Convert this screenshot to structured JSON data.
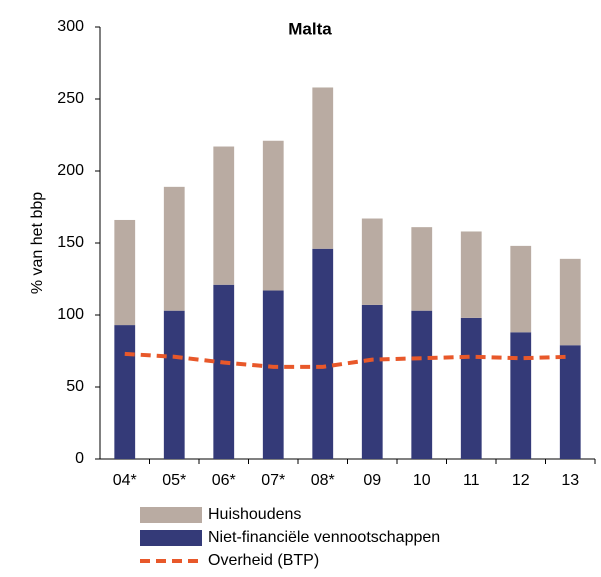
{
  "chart_data": {
    "type": "bar",
    "stacked": true,
    "title": "Malta",
    "y_label": "% van het bbp",
    "categories": [
      "04*",
      "05*",
      "06*",
      "07*",
      "08*",
      "09",
      "10",
      "11",
      "12",
      "13"
    ],
    "series": [
      {
        "name": "Huishoudens",
        "color": "#b9aba2",
        "type": "bar",
        "values": [
          73,
          86,
          96,
          104,
          112,
          60,
          58,
          60,
          60,
          60
        ]
      },
      {
        "name": "Niet-financiële vennootschappen",
        "color": "#343a78",
        "type": "bar",
        "values": [
          93,
          103,
          121,
          117,
          146,
          107,
          103,
          98,
          88,
          79
        ]
      },
      {
        "name": "Overheid (BTP)",
        "color": "#e8582a",
        "type": "line",
        "dashed": true,
        "values": [
          73,
          71,
          67,
          64,
          64,
          69,
          70,
          71,
          70,
          71
        ]
      }
    ],
    "ylim": [
      0,
      300
    ],
    "yticks": [
      0,
      50,
      100,
      150,
      200,
      250,
      300
    ],
    "grid": false
  }
}
